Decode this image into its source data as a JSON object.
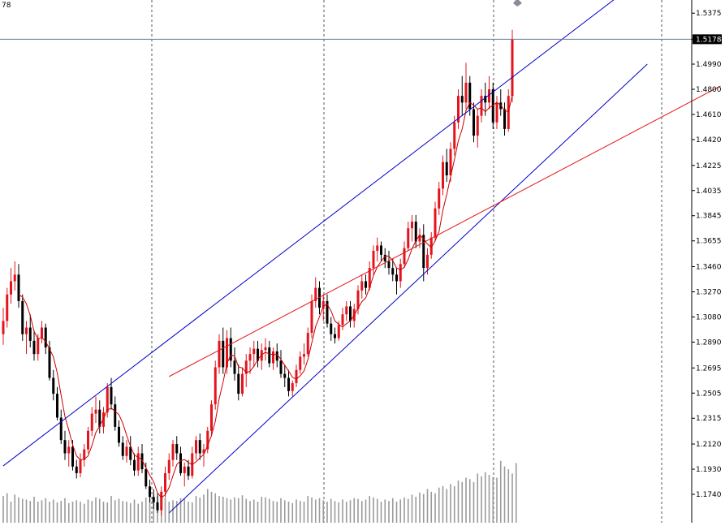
{
  "header": {
    "symbol_fragment": "78"
  },
  "price_axis": {
    "ticks": [
      "1.5375",
      "1.5178",
      "1.4990",
      "1.4800",
      "1.4610",
      "1.4420",
      "1.4225",
      "1.4035",
      "1.3845",
      "1.3655",
      "1.3460",
      "1.3270",
      "1.3080",
      "1.2890",
      "1.2695",
      "1.2505",
      "1.2315",
      "1.2120",
      "1.1930",
      "1.1740"
    ],
    "current_price": "1.5178",
    "current_price_value": 1.5178
  },
  "colors": {
    "bull": "#e4141e",
    "bear": "#000000",
    "channel": "#0000c8",
    "trendline": "#e41414",
    "ma": "#cc0000",
    "price_line": "#6a7a9a",
    "volume": "#9a9a9a",
    "grid": "#555555"
  },
  "chart_data": {
    "type": "candlestick",
    "title": "",
    "ylim": [
      1.155,
      1.545
    ],
    "price_scale": "linear",
    "grid": "vertical dashed separators",
    "candles": [
      [
        1.295,
        1.315,
        1.287,
        1.305
      ],
      [
        1.305,
        1.33,
        1.3,
        1.325
      ],
      [
        1.325,
        1.345,
        1.318,
        1.335
      ],
      [
        1.335,
        1.35,
        1.328,
        1.34
      ],
      [
        1.34,
        1.348,
        1.315,
        1.32
      ],
      [
        1.32,
        1.325,
        1.29,
        1.295
      ],
      [
        1.295,
        1.305,
        1.28,
        1.3
      ],
      [
        1.3,
        1.31,
        1.285,
        1.29
      ],
      [
        1.29,
        1.298,
        1.275,
        1.28
      ],
      [
        1.28,
        1.295,
        1.275,
        1.292
      ],
      [
        1.292,
        1.305,
        1.288,
        1.3
      ],
      [
        1.3,
        1.303,
        1.28,
        1.285
      ],
      [
        1.285,
        1.29,
        1.26,
        1.262
      ],
      [
        1.262,
        1.268,
        1.245,
        1.25
      ],
      [
        1.25,
        1.255,
        1.23,
        1.232
      ],
      [
        1.232,
        1.238,
        1.212,
        1.215
      ],
      [
        1.215,
        1.222,
        1.2,
        1.205
      ],
      [
        1.205,
        1.215,
        1.195,
        1.21
      ],
      [
        1.21,
        1.215,
        1.192,
        1.195
      ],
      [
        1.195,
        1.2,
        1.186,
        1.19
      ],
      [
        1.19,
        1.205,
        1.187,
        1.2
      ],
      [
        1.2,
        1.212,
        1.195,
        1.208
      ],
      [
        1.208,
        1.225,
        1.205,
        1.222
      ],
      [
        1.222,
        1.24,
        1.218,
        1.235
      ],
      [
        1.235,
        1.248,
        1.228,
        1.238
      ],
      [
        1.238,
        1.245,
        1.22,
        1.225
      ],
      [
        1.225,
        1.24,
        1.22,
        1.236
      ],
      [
        1.236,
        1.258,
        1.232,
        1.255
      ],
      [
        1.255,
        1.262,
        1.238,
        1.242
      ],
      [
        1.242,
        1.248,
        1.222,
        1.225
      ],
      [
        1.225,
        1.23,
        1.21,
        1.213
      ],
      [
        1.213,
        1.218,
        1.2,
        1.203
      ],
      [
        1.203,
        1.215,
        1.198,
        1.21
      ],
      [
        1.21,
        1.218,
        1.196,
        1.2
      ],
      [
        1.2,
        1.205,
        1.188,
        1.192
      ],
      [
        1.192,
        1.21,
        1.188,
        1.205
      ],
      [
        1.205,
        1.212,
        1.19,
        1.193
      ],
      [
        1.193,
        1.198,
        1.178,
        1.18
      ],
      [
        1.18,
        1.185,
        1.168,
        1.172
      ],
      [
        1.172,
        1.178,
        1.163,
        1.168
      ],
      [
        1.168,
        1.175,
        1.16,
        1.162
      ],
      [
        1.162,
        1.18,
        1.158,
        1.176
      ],
      [
        1.176,
        1.195,
        1.172,
        1.19
      ],
      [
        1.19,
        1.205,
        1.185,
        1.2
      ],
      [
        1.2,
        1.215,
        1.195,
        1.212
      ],
      [
        1.212,
        1.218,
        1.2,
        1.205
      ],
      [
        1.205,
        1.21,
        1.188,
        1.19
      ],
      [
        1.19,
        1.198,
        1.18,
        1.195
      ],
      [
        1.195,
        1.2,
        1.185,
        1.188
      ],
      [
        1.188,
        1.21,
        1.186,
        1.205
      ],
      [
        1.205,
        1.218,
        1.2,
        1.215
      ],
      [
        1.215,
        1.22,
        1.2,
        1.205
      ],
      [
        1.205,
        1.212,
        1.195,
        1.208
      ],
      [
        1.208,
        1.225,
        1.205,
        1.222
      ],
      [
        1.222,
        1.245,
        1.218,
        1.242
      ],
      [
        1.242,
        1.275,
        1.238,
        1.27
      ],
      [
        1.27,
        1.295,
        1.265,
        1.29
      ],
      [
        1.29,
        1.3,
        1.265,
        1.27
      ],
      [
        1.27,
        1.298,
        1.265,
        1.292
      ],
      [
        1.292,
        1.3,
        1.27,
        1.275
      ],
      [
        1.275,
        1.285,
        1.26,
        1.265
      ],
      [
        1.265,
        1.272,
        1.245,
        1.25
      ],
      [
        1.25,
        1.27,
        1.248,
        1.265
      ],
      [
        1.265,
        1.28,
        1.255,
        1.275
      ],
      [
        1.275,
        1.285,
        1.265,
        1.28
      ],
      [
        1.28,
        1.29,
        1.27,
        1.284
      ],
      [
        1.284,
        1.29,
        1.27,
        1.275
      ],
      [
        1.275,
        1.288,
        1.268,
        1.283
      ],
      [
        1.283,
        1.292,
        1.275,
        1.285
      ],
      [
        1.285,
        1.29,
        1.27,
        1.273
      ],
      [
        1.273,
        1.285,
        1.268,
        1.282
      ],
      [
        1.282,
        1.288,
        1.27,
        1.275
      ],
      [
        1.275,
        1.283,
        1.262,
        1.265
      ],
      [
        1.265,
        1.272,
        1.255,
        1.262
      ],
      [
        1.262,
        1.268,
        1.248,
        1.252
      ],
      [
        1.252,
        1.26,
        1.248,
        1.258
      ],
      [
        1.258,
        1.272,
        1.255,
        1.268
      ],
      [
        1.268,
        1.282,
        1.265,
        1.278
      ],
      [
        1.278,
        1.288,
        1.272,
        1.28
      ],
      [
        1.28,
        1.3,
        1.278,
        1.296
      ],
      [
        1.296,
        1.325,
        1.292,
        1.32
      ],
      [
        1.32,
        1.338,
        1.315,
        1.33
      ],
      [
        1.33,
        1.335,
        1.31,
        1.315
      ],
      [
        1.315,
        1.325,
        1.305,
        1.32
      ],
      [
        1.32,
        1.325,
        1.3,
        1.303
      ],
      [
        1.303,
        1.308,
        1.29,
        1.295
      ],
      [
        1.295,
        1.3,
        1.288,
        1.292
      ],
      [
        1.292,
        1.305,
        1.29,
        1.302
      ],
      [
        1.302,
        1.315,
        1.298,
        1.31
      ],
      [
        1.31,
        1.32,
        1.305,
        1.316
      ],
      [
        1.316,
        1.32,
        1.3,
        1.305
      ],
      [
        1.305,
        1.318,
        1.3,
        1.314
      ],
      [
        1.314,
        1.332,
        1.31,
        1.328
      ],
      [
        1.328,
        1.34,
        1.322,
        1.335
      ],
      [
        1.335,
        1.34,
        1.325,
        1.33
      ],
      [
        1.33,
        1.35,
        1.328,
        1.345
      ],
      [
        1.345,
        1.362,
        1.34,
        1.358
      ],
      [
        1.358,
        1.368,
        1.35,
        1.362
      ],
      [
        1.362,
        1.365,
        1.35,
        1.355
      ],
      [
        1.355,
        1.36,
        1.345,
        1.35
      ],
      [
        1.35,
        1.358,
        1.34,
        1.345
      ],
      [
        1.345,
        1.352,
        1.335,
        1.34
      ],
      [
        1.34,
        1.345,
        1.325,
        1.335
      ],
      [
        1.335,
        1.352,
        1.33,
        1.348
      ],
      [
        1.348,
        1.365,
        1.345,
        1.36
      ],
      [
        1.36,
        1.38,
        1.358,
        1.375
      ],
      [
        1.375,
        1.385,
        1.365,
        1.38
      ],
      [
        1.38,
        1.385,
        1.36,
        1.365
      ],
      [
        1.365,
        1.375,
        1.36,
        1.37
      ],
      [
        1.37,
        1.378,
        1.335,
        1.345
      ],
      [
        1.345,
        1.36,
        1.34,
        1.355
      ],
      [
        1.355,
        1.372,
        1.352,
        1.368
      ],
      [
        1.368,
        1.395,
        1.365,
        1.39
      ],
      [
        1.39,
        1.41,
        1.385,
        1.405
      ],
      [
        1.405,
        1.43,
        1.4,
        1.425
      ],
      [
        1.425,
        1.435,
        1.41,
        1.415
      ],
      [
        1.415,
        1.44,
        1.41,
        1.435
      ],
      [
        1.435,
        1.46,
        1.43,
        1.455
      ],
      [
        1.455,
        1.48,
        1.45,
        1.475
      ],
      [
        1.475,
        1.49,
        1.46,
        1.47
      ],
      [
        1.47,
        1.5,
        1.465,
        1.485
      ],
      [
        1.485,
        1.49,
        1.46,
        1.465
      ],
      [
        1.465,
        1.47,
        1.44,
        1.445
      ],
      [
        1.445,
        1.465,
        1.436,
        1.46
      ],
      [
        1.46,
        1.48,
        1.455,
        1.475
      ],
      [
        1.475,
        1.485,
        1.46,
        1.47
      ],
      [
        1.47,
        1.49,
        1.465,
        1.48
      ],
      [
        1.48,
        1.485,
        1.45,
        1.455
      ],
      [
        1.455,
        1.475,
        1.45,
        1.47
      ],
      [
        1.47,
        1.48,
        1.46,
        1.465
      ],
      [
        1.465,
        1.47,
        1.445,
        1.45
      ],
      [
        1.45,
        1.48,
        1.448,
        1.475
      ],
      [
        1.475,
        1.525,
        1.47,
        1.518
      ]
    ],
    "ma_period": 5,
    "channel": {
      "upper": [
        [
          0,
          1.1955
        ],
        [
          163,
          1.558
        ]
      ],
      "lower": [
        [
          43,
          1.16
        ],
        [
          167,
          1.499
        ]
      ]
    },
    "trendline": [
      [
        43,
        1.263
      ],
      [
        186,
        1.4825
      ]
    ],
    "volume_max": 90,
    "volume": [
      38,
      42,
      30,
      40,
      36,
      34,
      33,
      31,
      37,
      30,
      32,
      35,
      30,
      33,
      29,
      31,
      35,
      28,
      30,
      32,
      30,
      27,
      33,
      31,
      36,
      34,
      30,
      29,
      38,
      32,
      34,
      31,
      30,
      28,
      33,
      27,
      30,
      36,
      34,
      40,
      38,
      33,
      36,
      30,
      32,
      31,
      35,
      34,
      30,
      29,
      38,
      36,
      40,
      48,
      44,
      42,
      38,
      37,
      35,
      33,
      36,
      35,
      39,
      34,
      31,
      33,
      30,
      37,
      36,
      34,
      31,
      30,
      35,
      32,
      30,
      28,
      33,
      31,
      30,
      38,
      36,
      33,
      35,
      32,
      30,
      34,
      31,
      29,
      33,
      30,
      32,
      35,
      34,
      31,
      33,
      38,
      36,
      34,
      30,
      33,
      31,
      35,
      30,
      33,
      36,
      34,
      40,
      37,
      43,
      41,
      48,
      44,
      42,
      50,
      52,
      48,
      55,
      52,
      60,
      58,
      64,
      62,
      58,
      70,
      66,
      72,
      68,
      65,
      64,
      88,
      80,
      76,
      70,
      85
    ]
  }
}
